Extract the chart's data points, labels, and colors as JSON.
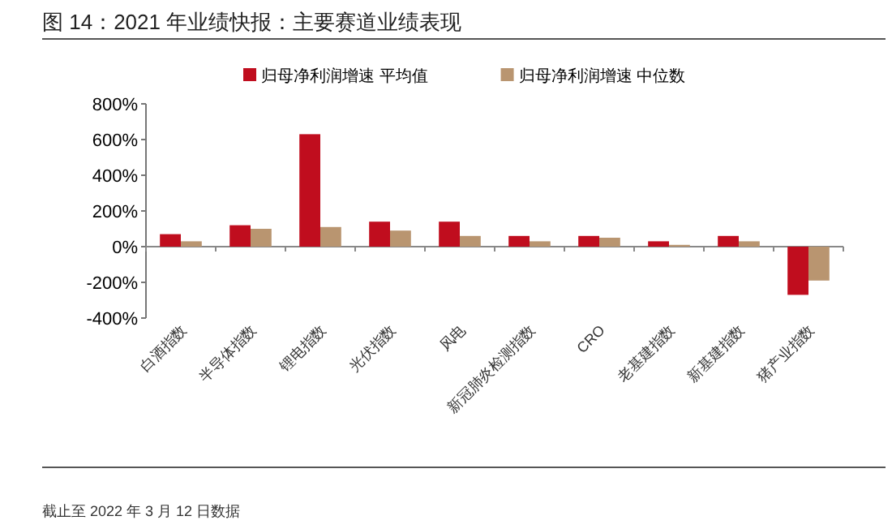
{
  "chart_data": {
    "type": "bar",
    "title": "图 14：2021 年业绩快报：主要赛道业绩表现",
    "categories": [
      "白酒指数",
      "半导体指数",
      "锂电指数",
      "光伏指数",
      "风电",
      "新冠肺炎检测指数",
      "CRO",
      "老基建指数",
      "新基建指数",
      "猪产业指数"
    ],
    "series": [
      {
        "name": "归母净利润增速 平均值",
        "color": "#c00d1e",
        "values": [
          70,
          120,
          630,
          140,
          140,
          60,
          60,
          30,
          60,
          -270
        ]
      },
      {
        "name": "归母净利润增速 中位数",
        "color": "#b99570",
        "values": [
          30,
          100,
          110,
          90,
          60,
          30,
          50,
          10,
          30,
          -190
        ]
      }
    ],
    "ylim": [
      -400,
      800
    ],
    "yticks": [
      {
        "value": -400,
        "label": "-400%"
      },
      {
        "value": -200,
        "label": "-200%"
      },
      {
        "value": 0,
        "label": "0%"
      },
      {
        "value": 200,
        "label": "200%"
      },
      {
        "value": 400,
        "label": "400%"
      },
      {
        "value": 600,
        "label": "600%"
      },
      {
        "value": 800,
        "label": "800%"
      }
    ],
    "legend": "top",
    "annotations": [
      "截止至 2022 年 3 月 12 日数据"
    ]
  }
}
